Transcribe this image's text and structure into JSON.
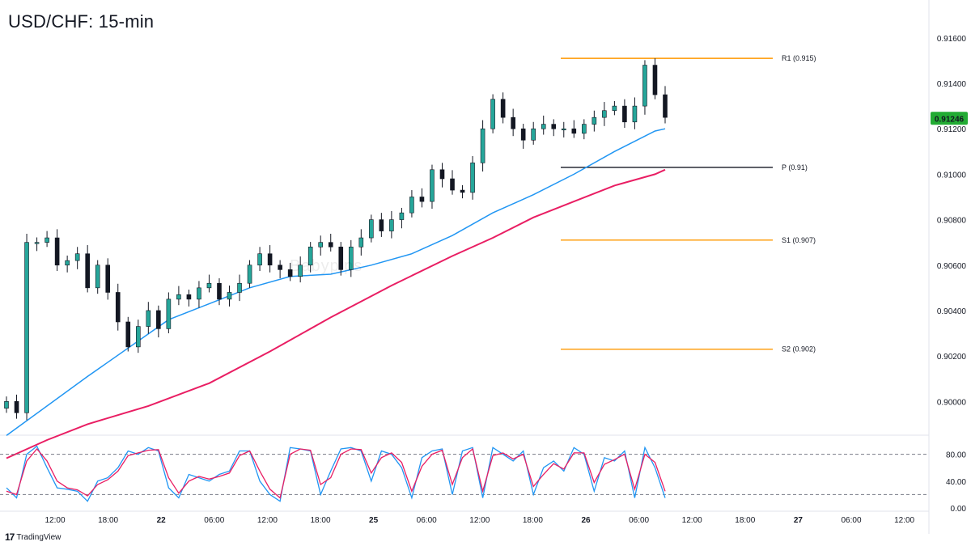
{
  "title": "USD/CHF: 15-min",
  "brand": "TradingView",
  "watermark": "Babypips",
  "colors": {
    "bull": "#26a69a",
    "bear": "#131722",
    "ema100": "#2196f3",
    "ema200": "#e91e63",
    "pivot_resistance": "#ff9800",
    "pivot_point": "#131722",
    "stoch_k": "#2196f3",
    "stoch_d": "#e91e63",
    "last_price_bg": "#22ab33"
  },
  "chart_data": [
    {
      "type": "candlestick",
      "title": "USD/CHF: 15-min",
      "ylim": [
        0.8988,
        0.9166
      ],
      "y_ticks": [
        "0.91600",
        "0.91400",
        "0.91200",
        "0.91000",
        "0.90800",
        "0.90600",
        "0.90400",
        "0.90200",
        "0.90000"
      ],
      "x_ticks": [
        "12:00",
        "18:00",
        "22",
        "06:00",
        "12:00",
        "18:00",
        "25",
        "06:00",
        "12:00",
        "18:00",
        "26",
        "06:00",
        "12:00",
        "18:00",
        "27",
        "06:00",
        "12:00"
      ],
      "last_price": "0.91246",
      "pivot_levels": [
        {
          "name": "R1",
          "label": "R1 (0.915)",
          "value": 0.9151,
          "color": "#ff9800"
        },
        {
          "name": "P",
          "label": "P (0.91)",
          "value": 0.9103,
          "color": "#131722"
        },
        {
          "name": "S1",
          "label": "S1 (0.907)",
          "value": 0.9071,
          "color": "#ff9800"
        },
        {
          "name": "S2",
          "label": "S2 (0.902)",
          "value": 0.9023,
          "color": "#ff9800"
        }
      ],
      "price_path": [
        [
          0,
          0.9
        ],
        [
          1,
          0.8995
        ],
        [
          2,
          0.907
        ],
        [
          3,
          0.907
        ],
        [
          4,
          0.9072
        ],
        [
          5,
          0.906
        ],
        [
          6,
          0.9062
        ],
        [
          7,
          0.9065
        ],
        [
          8,
          0.905
        ],
        [
          9,
          0.906
        ],
        [
          10,
          0.9048
        ],
        [
          11,
          0.9035
        ],
        [
          12,
          0.9024
        ],
        [
          13,
          0.9033
        ],
        [
          14,
          0.904
        ],
        [
          15,
          0.9032
        ],
        [
          16,
          0.9045
        ],
        [
          17,
          0.9047
        ],
        [
          18,
          0.9045
        ],
        [
          19,
          0.905
        ],
        [
          20,
          0.9052
        ],
        [
          21,
          0.9045
        ],
        [
          22,
          0.9048
        ],
        [
          23,
          0.9052
        ],
        [
          24,
          0.906
        ],
        [
          25,
          0.9065
        ],
        [
          26,
          0.906
        ],
        [
          27,
          0.9058
        ],
        [
          28,
          0.9055
        ],
        [
          29,
          0.906
        ],
        [
          30,
          0.9068
        ],
        [
          31,
          0.907
        ],
        [
          32,
          0.9068
        ],
        [
          33,
          0.9058
        ],
        [
          34,
          0.9068
        ],
        [
          35,
          0.9072
        ],
        [
          36,
          0.908
        ],
        [
          37,
          0.9075
        ],
        [
          38,
          0.908
        ],
        [
          39,
          0.9083
        ],
        [
          40,
          0.909
        ],
        [
          41,
          0.9088
        ],
        [
          42,
          0.9102
        ],
        [
          43,
          0.9098
        ],
        [
          44,
          0.9093
        ],
        [
          45,
          0.9092
        ],
        [
          46,
          0.9105
        ],
        [
          47,
          0.912
        ],
        [
          48,
          0.9133
        ],
        [
          49,
          0.9125
        ],
        [
          50,
          0.912
        ],
        [
          51,
          0.9115
        ],
        [
          52,
          0.912
        ],
        [
          53,
          0.9122
        ],
        [
          54,
          0.912
        ],
        [
          55,
          0.912
        ],
        [
          56,
          0.9118
        ],
        [
          57,
          0.9122
        ],
        [
          58,
          0.9125
        ],
        [
          59,
          0.9128
        ],
        [
          60,
          0.913
        ],
        [
          61,
          0.9123
        ],
        [
          62,
          0.913
        ],
        [
          63,
          0.9148
        ],
        [
          64,
          0.9135
        ],
        [
          65,
          0.9125
        ]
      ],
      "ema100": [
        [
          0,
          0.8985
        ],
        [
          8,
          0.9011
        ],
        [
          16,
          0.9036
        ],
        [
          24,
          0.905
        ],
        [
          28,
          0.9055
        ],
        [
          32,
          0.9056
        ],
        [
          36,
          0.906
        ],
        [
          40,
          0.9065
        ],
        [
          44,
          0.9073
        ],
        [
          48,
          0.9083
        ],
        [
          52,
          0.9091
        ],
        [
          56,
          0.91
        ],
        [
          60,
          0.911
        ],
        [
          64,
          0.9119
        ],
        [
          65,
          0.912
        ]
      ],
      "ema200": [
        [
          0,
          0.8975
        ],
        [
          4,
          0.8983
        ],
        [
          8,
          0.899
        ],
        [
          14,
          0.8998
        ],
        [
          20,
          0.9008
        ],
        [
          26,
          0.9022
        ],
        [
          32,
          0.9037
        ],
        [
          38,
          0.9051
        ],
        [
          44,
          0.9064
        ],
        [
          48,
          0.9072
        ],
        [
          52,
          0.9081
        ],
        [
          56,
          0.9088
        ],
        [
          60,
          0.9095
        ],
        [
          64,
          0.91
        ],
        [
          65,
          0.9102
        ]
      ]
    },
    {
      "type": "line",
      "title": "",
      "ylim": [
        0,
        100
      ],
      "y_ticks": [
        "80.00",
        "40.00",
        "0.00"
      ],
      "reference_lines": [
        80,
        20
      ],
      "series": [
        {
          "values": [
            30,
            15,
            80,
            92,
            60,
            30,
            28,
            25,
            10,
            40,
            45,
            60,
            85,
            80,
            90,
            85,
            30,
            15,
            50,
            45,
            40,
            50,
            55,
            85,
            85,
            40,
            20,
            10,
            90,
            88,
            85,
            20,
            55,
            88,
            90,
            85,
            40,
            85,
            80,
            60,
            15,
            75,
            85,
            88,
            20,
            85,
            90,
            15,
            90,
            80,
            70,
            85,
            20,
            60,
            70,
            55,
            90,
            80,
            25,
            75,
            70,
            85,
            15,
            90,
            60,
            15
          ]
        },
        {
          "values": [
            25,
            20,
            70,
            88,
            70,
            40,
            30,
            27,
            18,
            35,
            42,
            55,
            78,
            82,
            86,
            87,
            45,
            22,
            40,
            47,
            43,
            47,
            52,
            78,
            85,
            55,
            28,
            15,
            80,
            88,
            86,
            35,
            45,
            80,
            88,
            87,
            52,
            75,
            82,
            68,
            25,
            62,
            80,
            86,
            35,
            75,
            88,
            25,
            78,
            82,
            73,
            80,
            32,
            50,
            66,
            58,
            82,
            82,
            38,
            65,
            72,
            80,
            28,
            80,
            68,
            25
          ]
        }
      ]
    }
  ]
}
